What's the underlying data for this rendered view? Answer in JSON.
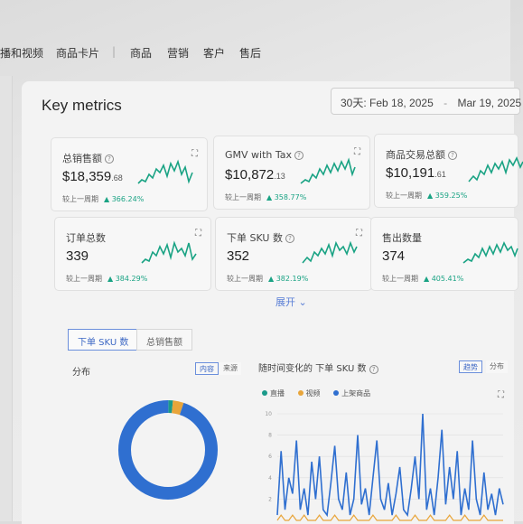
{
  "nav": {
    "items": [
      "播和视频",
      "商品卡片",
      "|",
      "商品",
      "营销",
      "客户",
      "售后"
    ]
  },
  "title": "Key metrics",
  "date_range": {
    "prefix": "30天:",
    "start": "Feb 18, 2025",
    "separator": "-",
    "end": "Mar 19, 2025"
  },
  "cards": [
    {
      "label": "总销售额",
      "value": "$18,359",
      "cents": ".68",
      "compare_label": "较上一周期",
      "change": "▲ 366.24%",
      "expand_icon": "fullscreen-icon"
    },
    {
      "label": "GMV with Tax",
      "value": "$10,872",
      "cents": ".13",
      "compare_label": "较上一周期",
      "change": "▲ 358.77%",
      "expand_icon": "fullscreen-icon"
    },
    {
      "label": "商品交易总额",
      "value": "$10,191",
      "cents": ".61",
      "compare_label": "较上一周期",
      "change": "▲ 359.25%",
      "expand_icon": "fullscreen-icon"
    },
    {
      "label": "订单总数",
      "value": "339",
      "cents": "",
      "compare_label": "较上一周期",
      "change": "▲ 384.29%",
      "expand_icon": "fullscreen-icon"
    },
    {
      "label": "下单 SKU 数",
      "value": "352",
      "cents": "",
      "compare_label": "较上一周期",
      "change": "▲ 382.19%",
      "expand_icon": "fullscreen-icon"
    },
    {
      "label": "售出数量",
      "value": "374",
      "cents": "",
      "compare_label": "较上一周期",
      "change": "▲ 405.41%",
      "expand_icon": "fullscreen-icon"
    }
  ],
  "expand_more": "展开 ⌄",
  "tabs": [
    {
      "label": "下单 SKU 数",
      "active": true
    },
    {
      "label": "总销售额",
      "active": false
    }
  ],
  "distribution": {
    "label": "分布",
    "toggles": [
      "内容",
      "来源"
    ]
  },
  "trend": {
    "label": "随时间变化的 下单 SKU 数",
    "toggles": [
      "趋势",
      "分布"
    ]
  },
  "legend": [
    {
      "name": "直播",
      "color": "#1a9a8a"
    },
    {
      "name": "视频",
      "color": "#e8a53a"
    },
    {
      "name": "上架商品",
      "color": "#2f6fd0"
    }
  ],
  "colors": {
    "accent_teal": "#1aa384",
    "donut_blue": "#2f6fd0",
    "link_blue": "#5a7fd6"
  },
  "chart_data": [
    {
      "type": "pie",
      "categories": [
        "直播",
        "视频",
        "上架商品"
      ],
      "values": [
        1.5,
        3.5,
        95
      ],
      "title": "",
      "legend": "none"
    },
    {
      "type": "line",
      "title": "",
      "ylim": [
        0,
        10
      ],
      "yticks": [
        "10",
        "8",
        "6",
        "4",
        "2"
      ],
      "series": [
        {
          "name": "上架商品",
          "values": [
            0.5,
            6.5,
            1,
            4,
            2.5,
            7.5,
            1,
            3,
            0.5,
            5.5,
            2,
            6,
            1,
            0.5,
            3.5,
            7,
            2,
            1,
            4.5,
            0.5,
            2,
            8,
            1.5,
            3,
            0.5,
            4,
            7.5,
            2,
            1,
            3.5,
            0.5,
            2.5,
            5,
            1,
            0.5,
            3,
            6,
            2,
            10,
            1,
            3,
            0.5,
            4,
            8.5,
            1.5,
            5,
            2,
            6.5,
            0.5,
            3,
            1,
            7.5,
            2,
            0.5,
            4.5,
            1,
            2.5,
            0.5,
            3,
            1.5
          ]
        },
        {
          "name": "视频",
          "values": [
            0,
            0.5,
            0,
            0,
            0.5,
            0,
            0,
            0.5,
            0,
            0,
            0,
            0.5,
            0,
            0,
            0,
            0.5,
            0,
            0,
            0,
            0,
            0.5,
            0,
            0,
            0,
            0,
            0.5,
            0,
            0,
            0,
            0,
            0,
            0.5,
            0,
            0,
            0,
            0,
            0.5,
            0,
            0,
            0,
            0.5,
            0,
            0,
            0,
            0,
            0.5,
            0,
            0,
            0,
            0.5,
            0,
            0,
            0,
            0,
            0.5,
            0,
            0,
            0,
            0,
            0
          ]
        }
      ]
    }
  ]
}
